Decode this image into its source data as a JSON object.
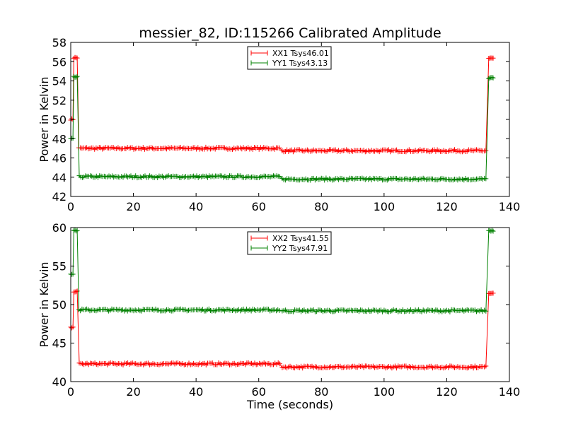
{
  "figure": {
    "title": "messier_82, ID:115266 Calibrated Amplitude"
  },
  "chart_data": [
    {
      "type": "line",
      "title": "messier_82, ID:115266 Calibrated Amplitude",
      "xlabel": "",
      "ylabel": "Power in Kelvin",
      "xlim": [
        0,
        140
      ],
      "ylim": [
        42,
        58
      ],
      "xticks": [
        "0",
        "20",
        "40",
        "60",
        "80",
        "100",
        "120",
        "140"
      ],
      "yticks": [
        "42",
        "44",
        "46",
        "48",
        "50",
        "52",
        "54",
        "56",
        "58"
      ],
      "grid": false,
      "legend": "top-center",
      "series": [
        {
          "name": "XX1 Tsys46.01",
          "color": "#ff0000",
          "marker": "plus",
          "segments": [
            {
              "x0": 0,
              "x1": 1,
              "y": 50
            },
            {
              "x0": 1,
              "x1": 2.2,
              "y": 56.4
            },
            {
              "x0": 2.6,
              "x1": 66.8,
              "y": 47.0
            },
            {
              "x0": 67.5,
              "x1": 132.8,
              "y": 46.75
            },
            {
              "x0": 133.4,
              "x1": 135,
              "y": 56.35
            }
          ]
        },
        {
          "name": "YY1 Tsys43.13",
          "color": "#008000",
          "marker": "plus",
          "segments": [
            {
              "x0": 0,
              "x1": 1,
              "y": 48
            },
            {
              "x0": 1,
              "x1": 2.2,
              "y": 54.4
            },
            {
              "x0": 2.7,
              "x1": 66.8,
              "y": 44.05
            },
            {
              "x0": 67.5,
              "x1": 132.8,
              "y": 43.8
            },
            {
              "x0": 133.4,
              "x1": 135,
              "y": 54.3
            }
          ]
        }
      ]
    },
    {
      "type": "line",
      "title": "",
      "xlabel": "Time (seconds)",
      "ylabel": "Power in Kelvin",
      "xlim": [
        0,
        140
      ],
      "ylim": [
        40,
        60
      ],
      "xticks": [
        "0",
        "20",
        "40",
        "60",
        "80",
        "100",
        "120",
        "140"
      ],
      "yticks": [
        "40",
        "45",
        "50",
        "55",
        "60"
      ],
      "grid": false,
      "legend": "top-center",
      "series": [
        {
          "name": "XX2 Tsys41.55",
          "color": "#ff0000",
          "marker": "plus",
          "segments": [
            {
              "x0": 0,
              "x1": 1,
              "y": 47
            },
            {
              "x0": 1,
              "x1": 2.2,
              "y": 51.7
            },
            {
              "x0": 2.7,
              "x1": 66.8,
              "y": 42.3
            },
            {
              "x0": 67.5,
              "x1": 132.8,
              "y": 41.9
            },
            {
              "x0": 133.4,
              "x1": 135,
              "y": 51.5
            }
          ]
        },
        {
          "name": "YY2 Tsys47.91",
          "color": "#008000",
          "marker": "plus",
          "segments": [
            {
              "x0": 0,
              "x1": 1,
              "y": 54
            },
            {
              "x0": 1,
              "x1": 2.2,
              "y": 59.6
            },
            {
              "x0": 2.6,
              "x1": 66.8,
              "y": 49.3
            },
            {
              "x0": 67.5,
              "x1": 132.8,
              "y": 49.2
            },
            {
              "x0": 133.4,
              "x1": 135,
              "y": 59.6
            }
          ]
        }
      ]
    }
  ]
}
